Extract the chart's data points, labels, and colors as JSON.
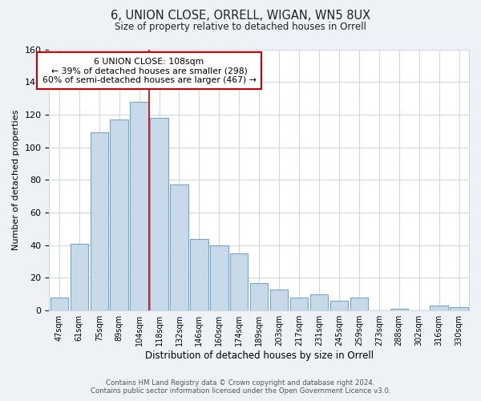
{
  "title": "6, UNION CLOSE, ORRELL, WIGAN, WN5 8UX",
  "subtitle": "Size of property relative to detached houses in Orrell",
  "xlabel": "Distribution of detached houses by size in Orrell",
  "ylabel": "Number of detached properties",
  "bar_labels": [
    "47sqm",
    "61sqm",
    "75sqm",
    "89sqm",
    "104sqm",
    "118sqm",
    "132sqm",
    "146sqm",
    "160sqm",
    "174sqm",
    "189sqm",
    "203sqm",
    "217sqm",
    "231sqm",
    "245sqm",
    "259sqm",
    "273sqm",
    "288sqm",
    "302sqm",
    "316sqm",
    "330sqm"
  ],
  "bar_values": [
    8,
    41,
    109,
    117,
    128,
    118,
    77,
    44,
    40,
    35,
    17,
    13,
    8,
    10,
    6,
    8,
    0,
    1,
    0,
    3,
    2
  ],
  "bar_color": "#c8daea",
  "bar_edge_color": "#6fa8cc",
  "vline_x_index": 4,
  "vline_color": "#cc0000",
  "annotation_line1": "6 UNION CLOSE: 108sqm",
  "annotation_line2": "← 39% of detached houses are smaller (298)",
  "annotation_line3": "60% of semi-detached houses are larger (467) →",
  "annotation_box_color": "#ffffff",
  "annotation_box_edge": "#cc0000",
  "ylim": [
    0,
    160
  ],
  "yticks": [
    0,
    20,
    40,
    60,
    80,
    100,
    120,
    140,
    160
  ],
  "footer": "Contains HM Land Registry data © Crown copyright and database right 2024.\nContains public sector information licensed under the Open Government Licence v3.0.",
  "bg_color": "#eef2f7",
  "plot_bg_color": "#ffffff",
  "grid_color": "#d0d8e4"
}
